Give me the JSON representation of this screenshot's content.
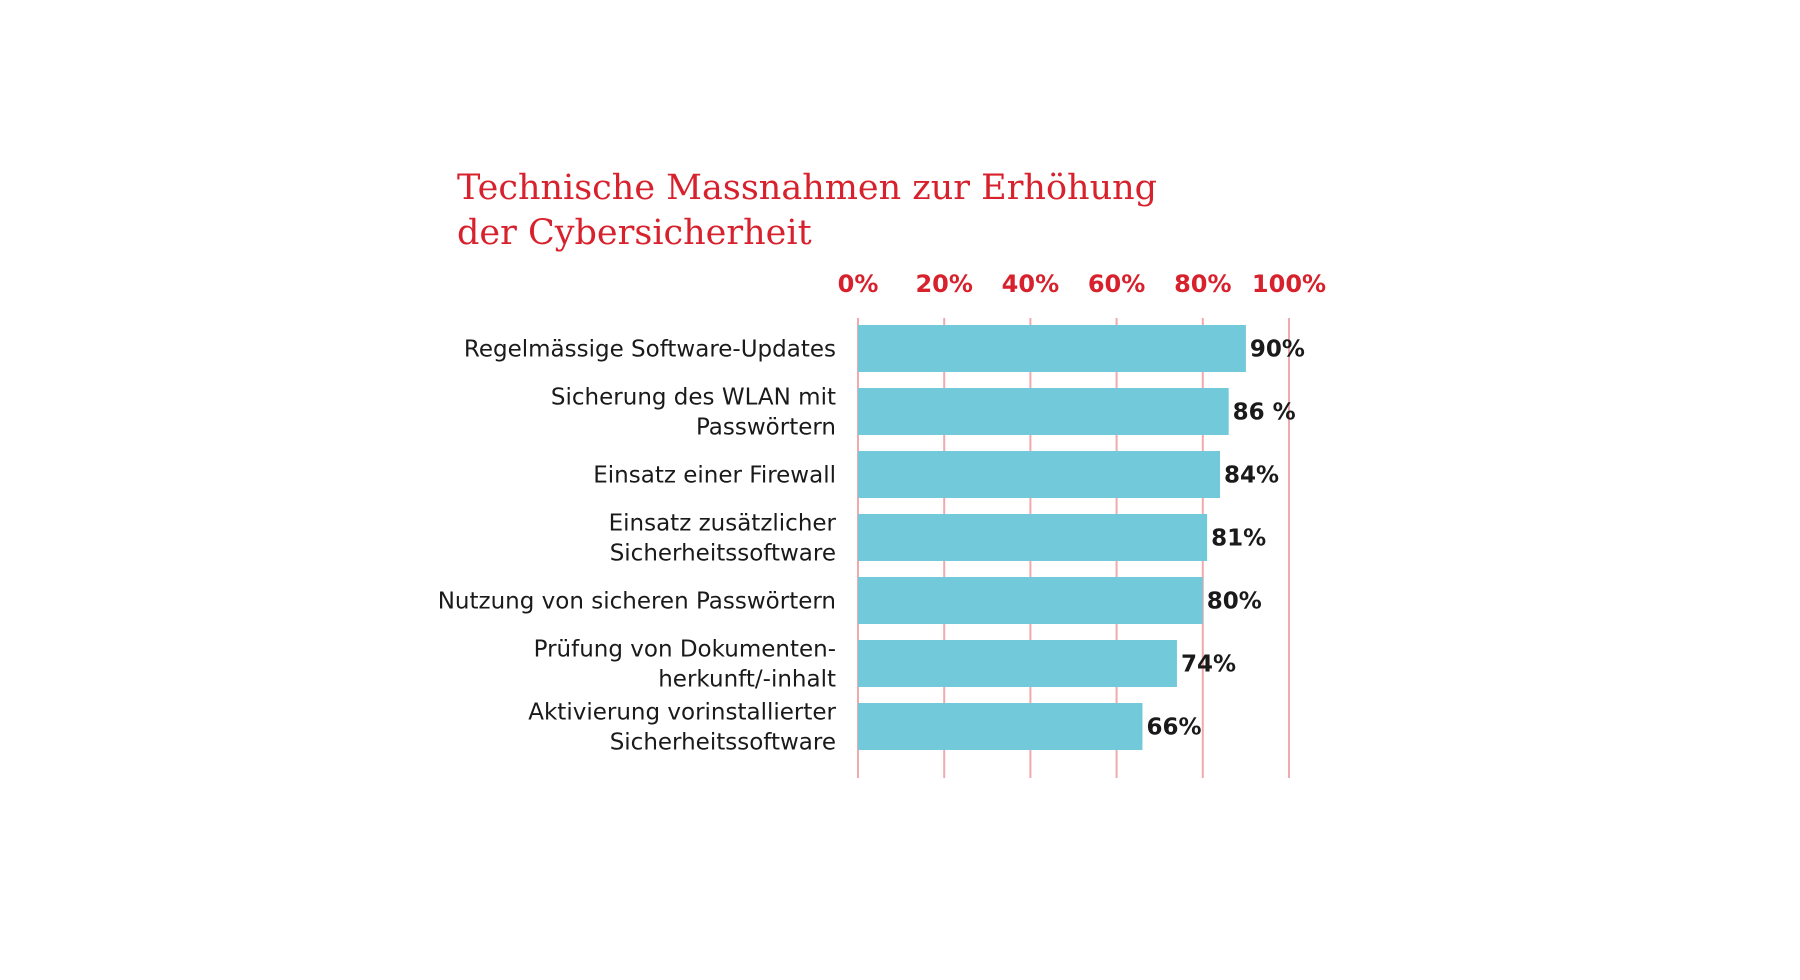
{
  "chart_data": {
    "type": "bar",
    "orientation": "horizontal",
    "title_lines": [
      "Technische Massnahmen zur Erhöhung",
      "der Cybersicherheit"
    ],
    "categories": [
      [
        "Regelmässige Software-Updates"
      ],
      [
        "Sicherung des WLAN mit",
        "Passwörtern"
      ],
      [
        "Einsatz einer Firewall"
      ],
      [
        "Einsatz zusätzlicher",
        "Sicherheitssoftware"
      ],
      [
        "Nutzung von sicheren Passwörtern"
      ],
      [
        "Prüfung von Dokumenten-",
        "herkunft/-inhalt"
      ],
      [
        "Aktivierung vorinstallierter",
        "Sicherheitssoftware"
      ]
    ],
    "values": [
      90,
      86,
      84,
      81,
      80,
      74,
      66
    ],
    "value_labels": [
      "90%",
      "86 %",
      "84%",
      "81%",
      "80%",
      "74%",
      "66%"
    ],
    "xlim": [
      0,
      100
    ],
    "ticks": [
      0,
      20,
      40,
      60,
      80,
      100
    ],
    "tick_labels": [
      "0%",
      "20%",
      "40%",
      "60%",
      "80%",
      "100%"
    ],
    "xlabel": "",
    "ylabel": "",
    "axis_position": "top",
    "grid": true,
    "legend": "none",
    "colors": {
      "bar": "#71c9d9",
      "title": "#d7222d",
      "ticks": "#d7222d",
      "grid": "#f1a9ad",
      "text": "#1a1a1a"
    }
  }
}
